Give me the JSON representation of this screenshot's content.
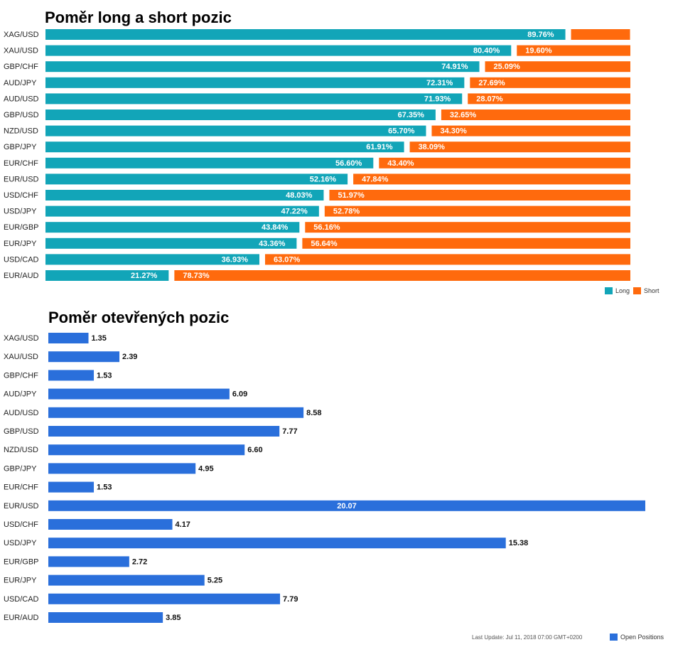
{
  "chart_data": [
    {
      "type": "bar",
      "orientation": "horizontal",
      "stacked": true,
      "title": "Poměr long a short pozic",
      "categories": [
        "XAG/USD",
        "XAU/USD",
        "GBP/CHF",
        "AUD/JPY",
        "AUD/USD",
        "GBP/USD",
        "NZD/USD",
        "GBP/JPY",
        "EUR/CHF",
        "EUR/USD",
        "USD/CHF",
        "USD/JPY",
        "EUR/GBP",
        "EUR/JPY",
        "USD/CAD",
        "EUR/AUD"
      ],
      "series": [
        {
          "name": "Long",
          "color": "#12a5b8",
          "values": [
            89.76,
            80.4,
            74.91,
            72.31,
            71.93,
            67.35,
            65.7,
            61.91,
            56.6,
            52.16,
            48.03,
            47.22,
            43.84,
            43.36,
            36.93,
            21.27
          ],
          "labels": [
            "89.76%",
            "80.40%",
            "74.91%",
            "72.31%",
            "71.93%",
            "67.35%",
            "65.70%",
            "61.91%",
            "56.60%",
            "52.16%",
            "48.03%",
            "47.22%",
            "43.84%",
            "43.36%",
            "36.93%",
            "21.27%"
          ]
        },
        {
          "name": "Short",
          "color": "#ff6a0d",
          "values": [
            10.24,
            19.6,
            25.09,
            27.69,
            28.07,
            32.65,
            34.3,
            38.09,
            43.4,
            47.84,
            51.97,
            52.78,
            56.16,
            56.64,
            63.07,
            78.73
          ],
          "labels": [
            "",
            "19.60%",
            "25.09%",
            "27.69%",
            "28.07%",
            "32.65%",
            "34.30%",
            "38.09%",
            "43.40%",
            "47.84%",
            "51.97%",
            "52.78%",
            "56.16%",
            "56.64%",
            "63.07%",
            "78.73%"
          ]
        }
      ],
      "xlim": [
        0,
        100
      ],
      "legend": "bottom-right"
    },
    {
      "type": "bar",
      "orientation": "horizontal",
      "title": "Poměr otevřených pozic",
      "categories": [
        "XAG/USD",
        "XAU/USD",
        "GBP/CHF",
        "AUD/JPY",
        "AUD/USD",
        "GBP/USD",
        "NZD/USD",
        "GBP/JPY",
        "EUR/CHF",
        "EUR/USD",
        "USD/CHF",
        "USD/JPY",
        "EUR/GBP",
        "EUR/JPY",
        "USD/CAD",
        "EUR/AUD"
      ],
      "series": [
        {
          "name": "Open Positions",
          "color": "#2a6fdb",
          "values": [
            1.35,
            2.39,
            1.53,
            6.09,
            8.58,
            7.77,
            6.6,
            4.95,
            1.53,
            20.07,
            4.17,
            15.38,
            2.72,
            5.25,
            7.79,
            3.85
          ],
          "labels": [
            "1.35",
            "2.39",
            "1.53",
            "6.09",
            "8.58",
            "7.77",
            "6.60",
            "4.95",
            "1.53",
            "20.07",
            "4.17",
            "15.38",
            "2.72",
            "5.25",
            "7.79",
            "3.85"
          ]
        }
      ],
      "xlim": [
        0,
        20.07
      ],
      "legend": "bottom-right"
    }
  ],
  "footer": {
    "last_update": "Last Update: Jul 11, 2018 07:00 GMT+0200"
  }
}
